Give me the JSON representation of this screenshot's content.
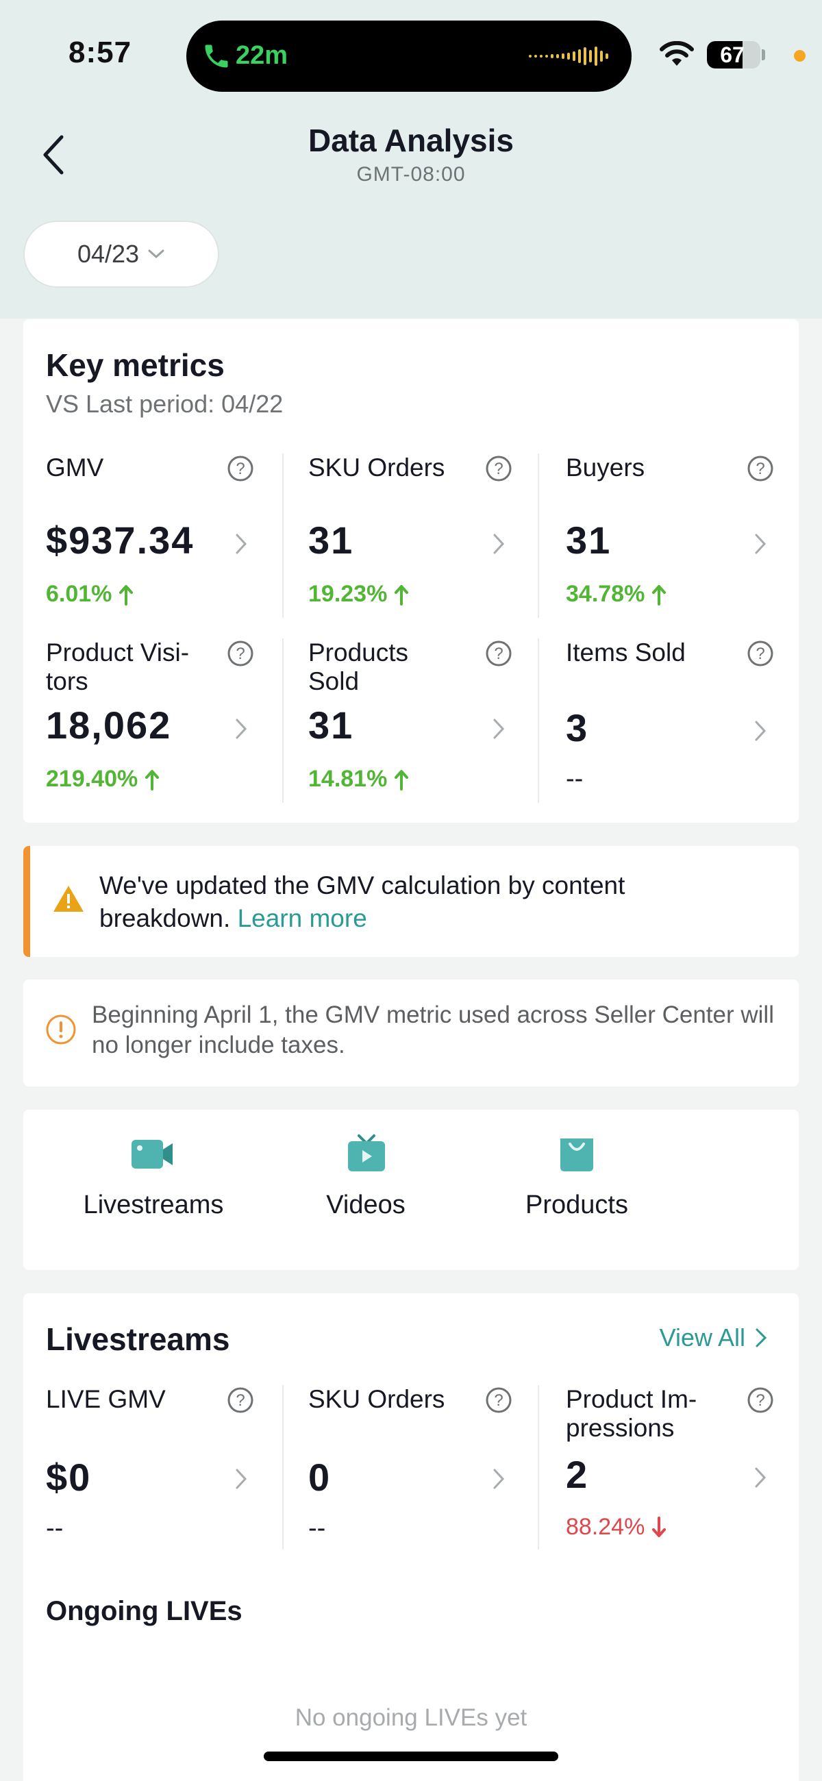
{
  "status_bar": {
    "time": "8:57",
    "call_duration": "22m",
    "battery_percent": 67,
    "battery": "67",
    "call_color": "#39d160",
    "dot_color": "#f5a623"
  },
  "header": {
    "title": "Data Analysis",
    "timezone": "GMT-08:00",
    "back_icon": "chevron-left-icon"
  },
  "date_filter": {
    "value": "04/23",
    "icon": "chevron-down-icon"
  },
  "key_metrics": {
    "title": "Key metrics",
    "comparison": "VS Last period: 04/22",
    "metrics": [
      {
        "label": "GMV",
        "value": "$937.34",
        "delta": "6.01%",
        "trend": "up"
      },
      {
        "label": "SKU Orders",
        "value": "31",
        "delta": "19.23%",
        "trend": "up"
      },
      {
        "label": "Buyers",
        "value": "31",
        "delta": "34.78%",
        "trend": "up"
      },
      {
        "label": "Product Visi-\ntors",
        "value": "18,062",
        "delta": "219.40%",
        "trend": "up"
      },
      {
        "label": "Products\nSold",
        "value": "31",
        "delta": "14.81%",
        "trend": "up"
      },
      {
        "label": "Items Sold",
        "value": "3",
        "delta": "--",
        "trend": "none"
      }
    ],
    "up_color": "#52b535",
    "down_color": "#e0474c"
  },
  "gmv_notice": {
    "text": "We've updated the GMV calculation by content breakdown.",
    "link": "Learn more",
    "accent_color": "#f09433",
    "icon": "warning-icon"
  },
  "tax_notice": {
    "text": "Beginning April 1, the GMV metric used across Seller Center will no longer include taxes.",
    "icon": "info-icon"
  },
  "tabs": [
    {
      "label": "Livestreams",
      "icon": "video-camera-icon"
    },
    {
      "label": "Videos",
      "icon": "tv-icon"
    },
    {
      "label": "Products",
      "icon": "shopping-bag-icon"
    }
  ],
  "livestreams": {
    "title": "Livestreams",
    "view_all": "View All",
    "metrics": [
      {
        "label": "LIVE GMV",
        "value": "$0",
        "delta": "--",
        "trend": "none"
      },
      {
        "label": "SKU Orders",
        "value": "0",
        "delta": "--",
        "trend": "none"
      },
      {
        "label": "Product Im-\npressions",
        "value": "2",
        "delta": "88.24%",
        "trend": "down"
      }
    ],
    "ongoing_title": "Ongoing LIVEs",
    "empty_text": "No ongoing LIVEs yet",
    "accent_color": "#2b9a95"
  }
}
